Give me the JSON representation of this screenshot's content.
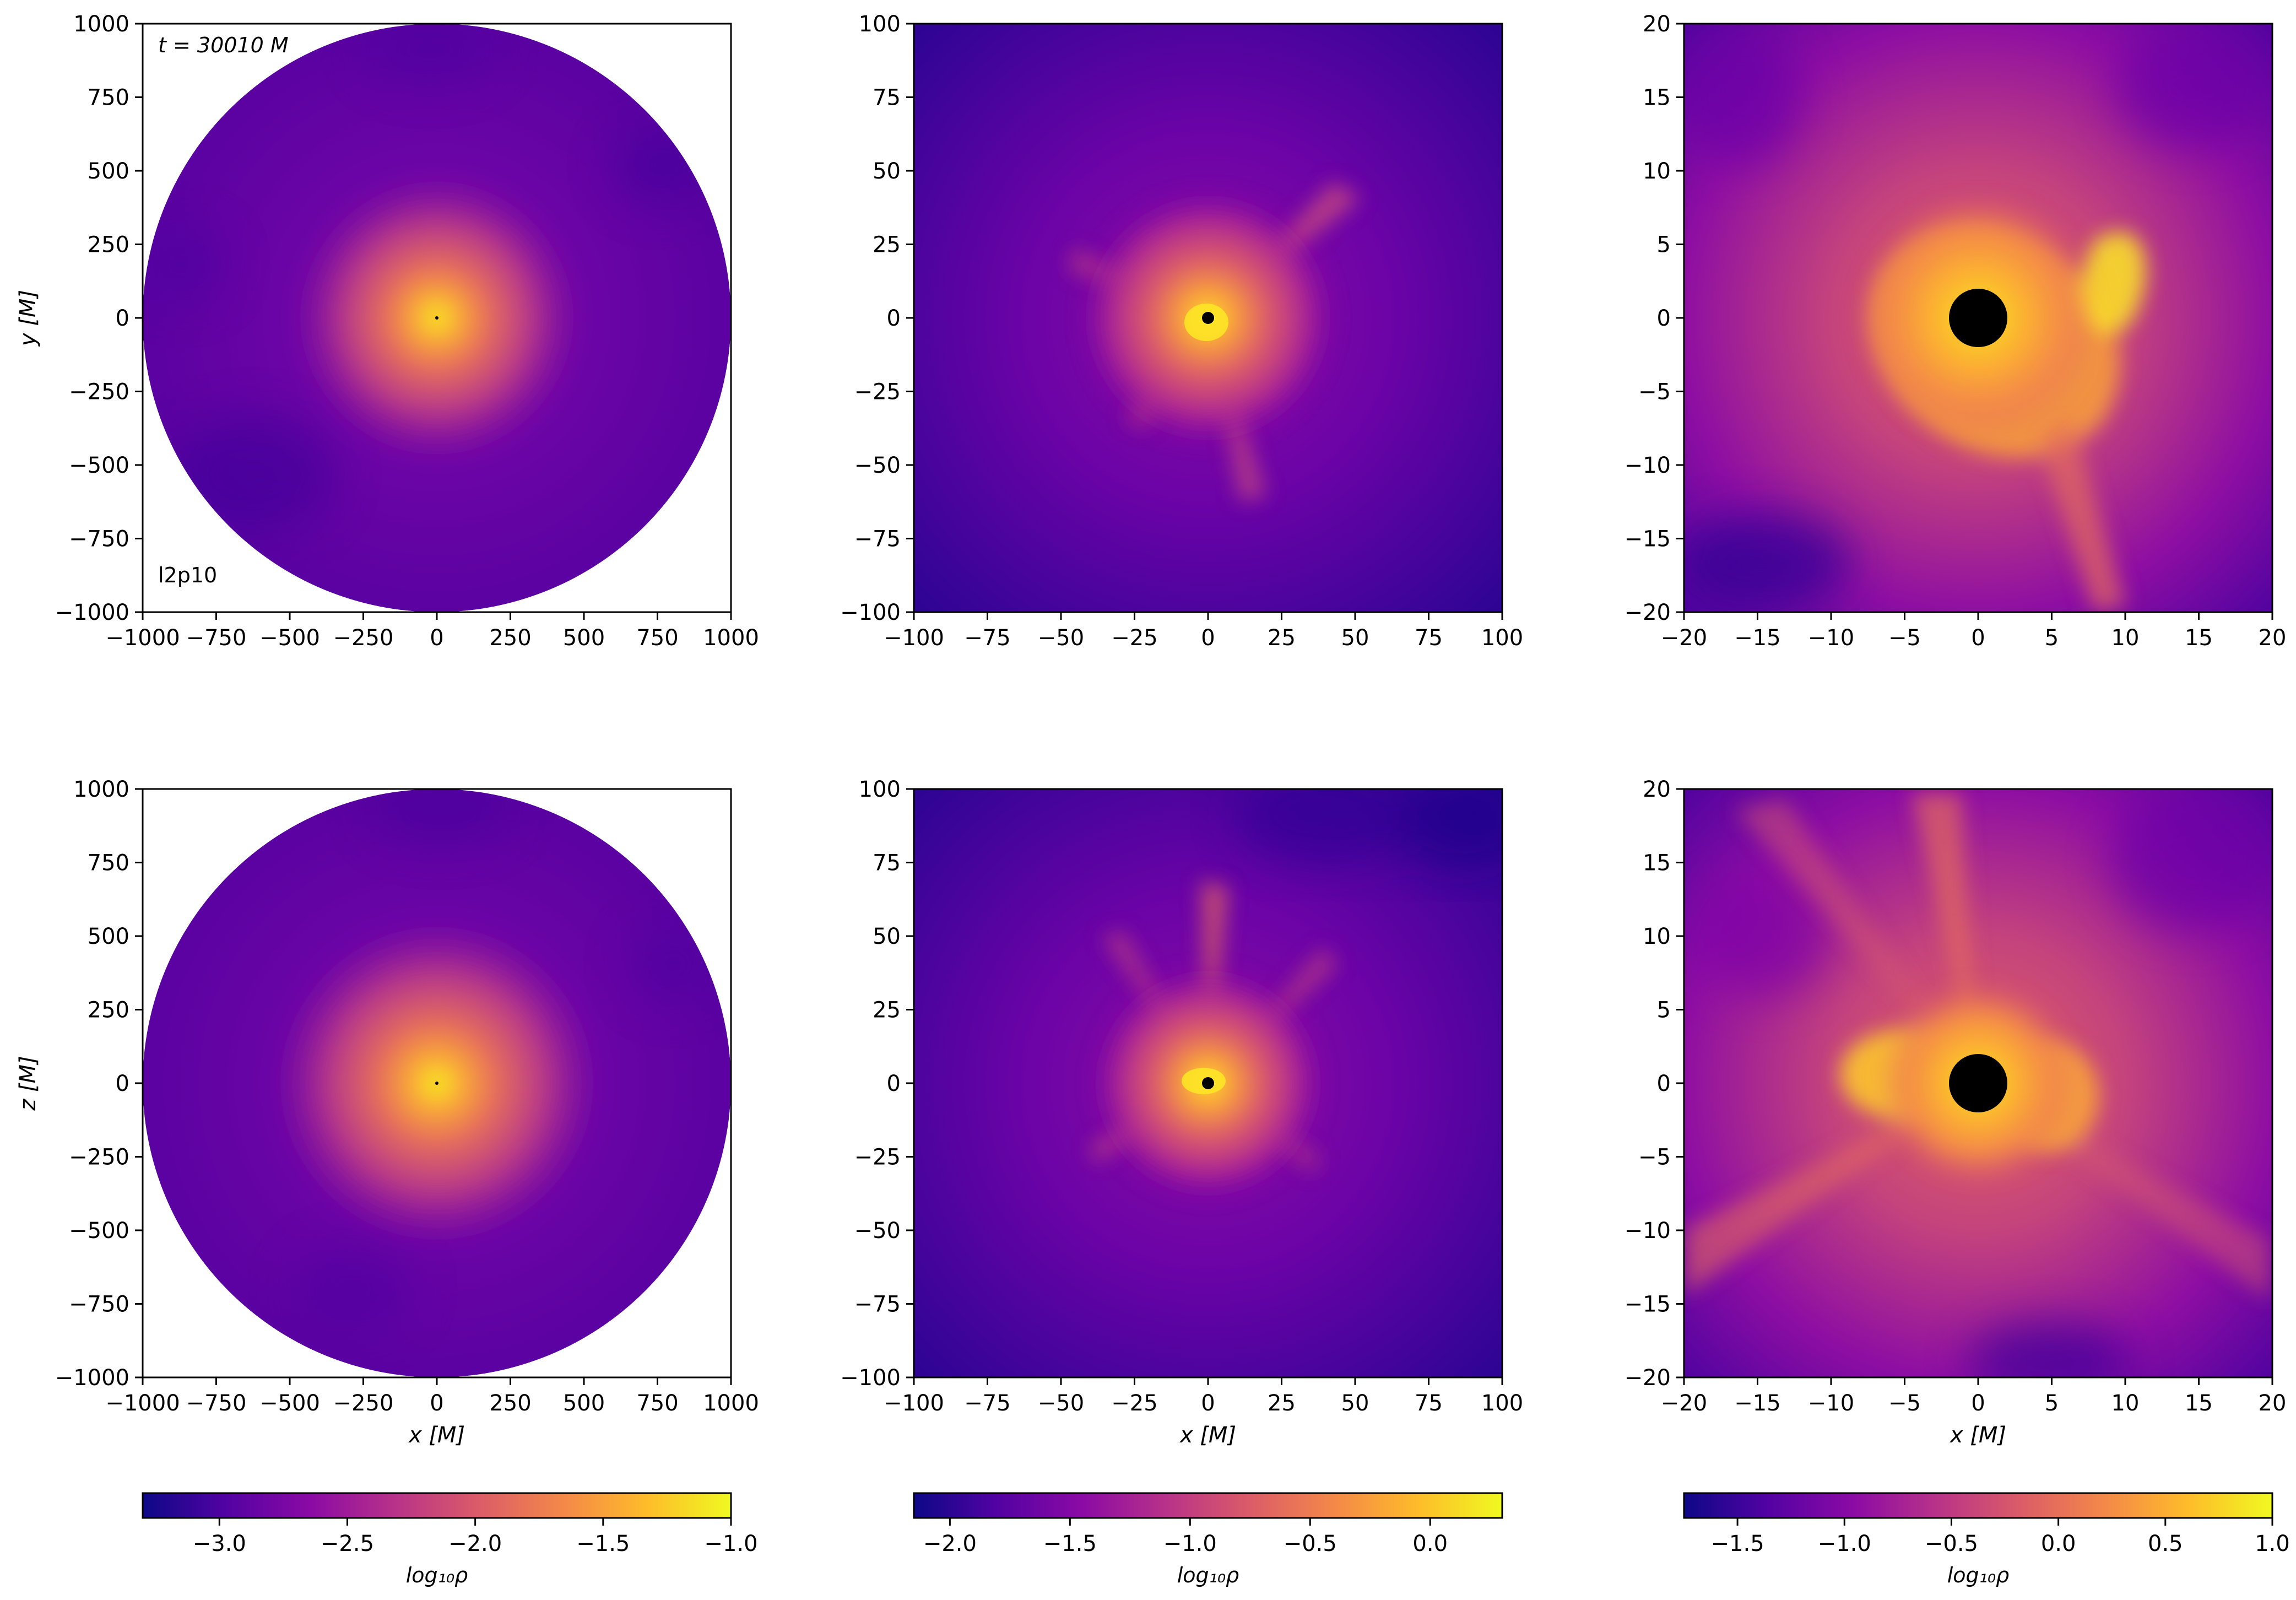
{
  "figure": {
    "time_label": "t = 30010 M",
    "model_label": "l2p10",
    "colormap": [
      "#0d0887",
      "#5302a3",
      "#8b0aa5",
      "#b83289",
      "#db5c68",
      "#f48849",
      "#febc2a",
      "#f0f921"
    ]
  },
  "chart_data": [
    {
      "id": "xy-1000",
      "type": "heatmap",
      "plane": "xy",
      "xlim": [
        -1000,
        1000
      ],
      "ylim": [
        -1000,
        1000
      ],
      "xticks": [
        -1000,
        -750,
        -500,
        -250,
        0,
        250,
        500,
        750,
        1000
      ],
      "yticks": [
        -1000,
        -750,
        -500,
        -250,
        0,
        250,
        500,
        750,
        1000
      ],
      "xlabel": "",
      "ylabel": "y [M]",
      "domain": "circle",
      "colorbar_range": [
        -3.3,
        -1.0
      ],
      "horizon_radius": 2
    },
    {
      "id": "xy-100",
      "type": "heatmap",
      "plane": "xy",
      "xlim": [
        -100,
        100
      ],
      "ylim": [
        -100,
        100
      ],
      "xticks": [
        -100,
        -75,
        -50,
        -25,
        0,
        25,
        50,
        75,
        100
      ],
      "yticks": [
        -100,
        -75,
        -50,
        -25,
        0,
        25,
        50,
        75,
        100
      ],
      "xlabel": "",
      "ylabel": "",
      "domain": "square",
      "colorbar_range": [
        -2.15,
        0.3
      ],
      "horizon_radius": 2
    },
    {
      "id": "xy-20",
      "type": "heatmap",
      "plane": "xy",
      "xlim": [
        -20,
        20
      ],
      "ylim": [
        -20,
        20
      ],
      "xticks": [
        -20,
        -15,
        -10,
        -5,
        0,
        5,
        10,
        15,
        20
      ],
      "yticks": [
        -20,
        -15,
        -10,
        -5,
        0,
        5,
        10,
        15,
        20
      ],
      "xlabel": "",
      "ylabel": "",
      "domain": "square",
      "colorbar_range": [
        -1.75,
        1.0
      ],
      "horizon_radius": 2
    },
    {
      "id": "xz-1000",
      "type": "heatmap",
      "plane": "xz",
      "xlim": [
        -1000,
        1000
      ],
      "ylim": [
        -1000,
        1000
      ],
      "xticks": [
        -1000,
        -750,
        -500,
        -250,
        0,
        250,
        500,
        750,
        1000
      ],
      "yticks": [
        -1000,
        -750,
        -500,
        -250,
        0,
        250,
        500,
        750,
        1000
      ],
      "xlabel": "x [M]",
      "ylabel": "z [M]",
      "domain": "circle",
      "colorbar_range": [
        -3.3,
        -1.0
      ],
      "horizon_radius": 2
    },
    {
      "id": "xz-100",
      "type": "heatmap",
      "plane": "xz",
      "xlim": [
        -100,
        100
      ],
      "ylim": [
        -100,
        100
      ],
      "xticks": [
        -100,
        -75,
        -50,
        -25,
        0,
        25,
        50,
        75,
        100
      ],
      "yticks": [
        -100,
        -75,
        -50,
        -25,
        0,
        25,
        50,
        75,
        100
      ],
      "xlabel": "x [M]",
      "ylabel": "",
      "domain": "square",
      "colorbar_range": [
        -2.15,
        0.3
      ],
      "horizon_radius": 2
    },
    {
      "id": "xz-20",
      "type": "heatmap",
      "plane": "xz",
      "xlim": [
        -20,
        20
      ],
      "ylim": [
        -20,
        20
      ],
      "xticks": [
        -20,
        -15,
        -10,
        -5,
        0,
        5,
        10,
        15,
        20
      ],
      "yticks": [
        -20,
        -15,
        -10,
        -5,
        0,
        5,
        10,
        15,
        20
      ],
      "xlabel": "x [M]",
      "ylabel": "",
      "domain": "square",
      "colorbar_range": [
        -1.75,
        1.0
      ],
      "horizon_radius": 2
    }
  ],
  "colorbars": [
    {
      "label": "log₁₀ρ",
      "range": [
        -3.3,
        -1.0
      ],
      "ticks": [
        -3.0,
        -2.5,
        -2.0,
        -1.5,
        -1.0
      ]
    },
    {
      "label": "log₁₀ρ",
      "range": [
        -2.15,
        0.3
      ],
      "ticks": [
        -2.0,
        -1.5,
        -1.0,
        -0.5,
        0.0
      ]
    },
    {
      "label": "log₁₀ρ",
      "range": [
        -1.75,
        1.0
      ],
      "ticks": [
        -1.5,
        -1.0,
        -0.5,
        0.0,
        0.5,
        1.0
      ]
    }
  ]
}
